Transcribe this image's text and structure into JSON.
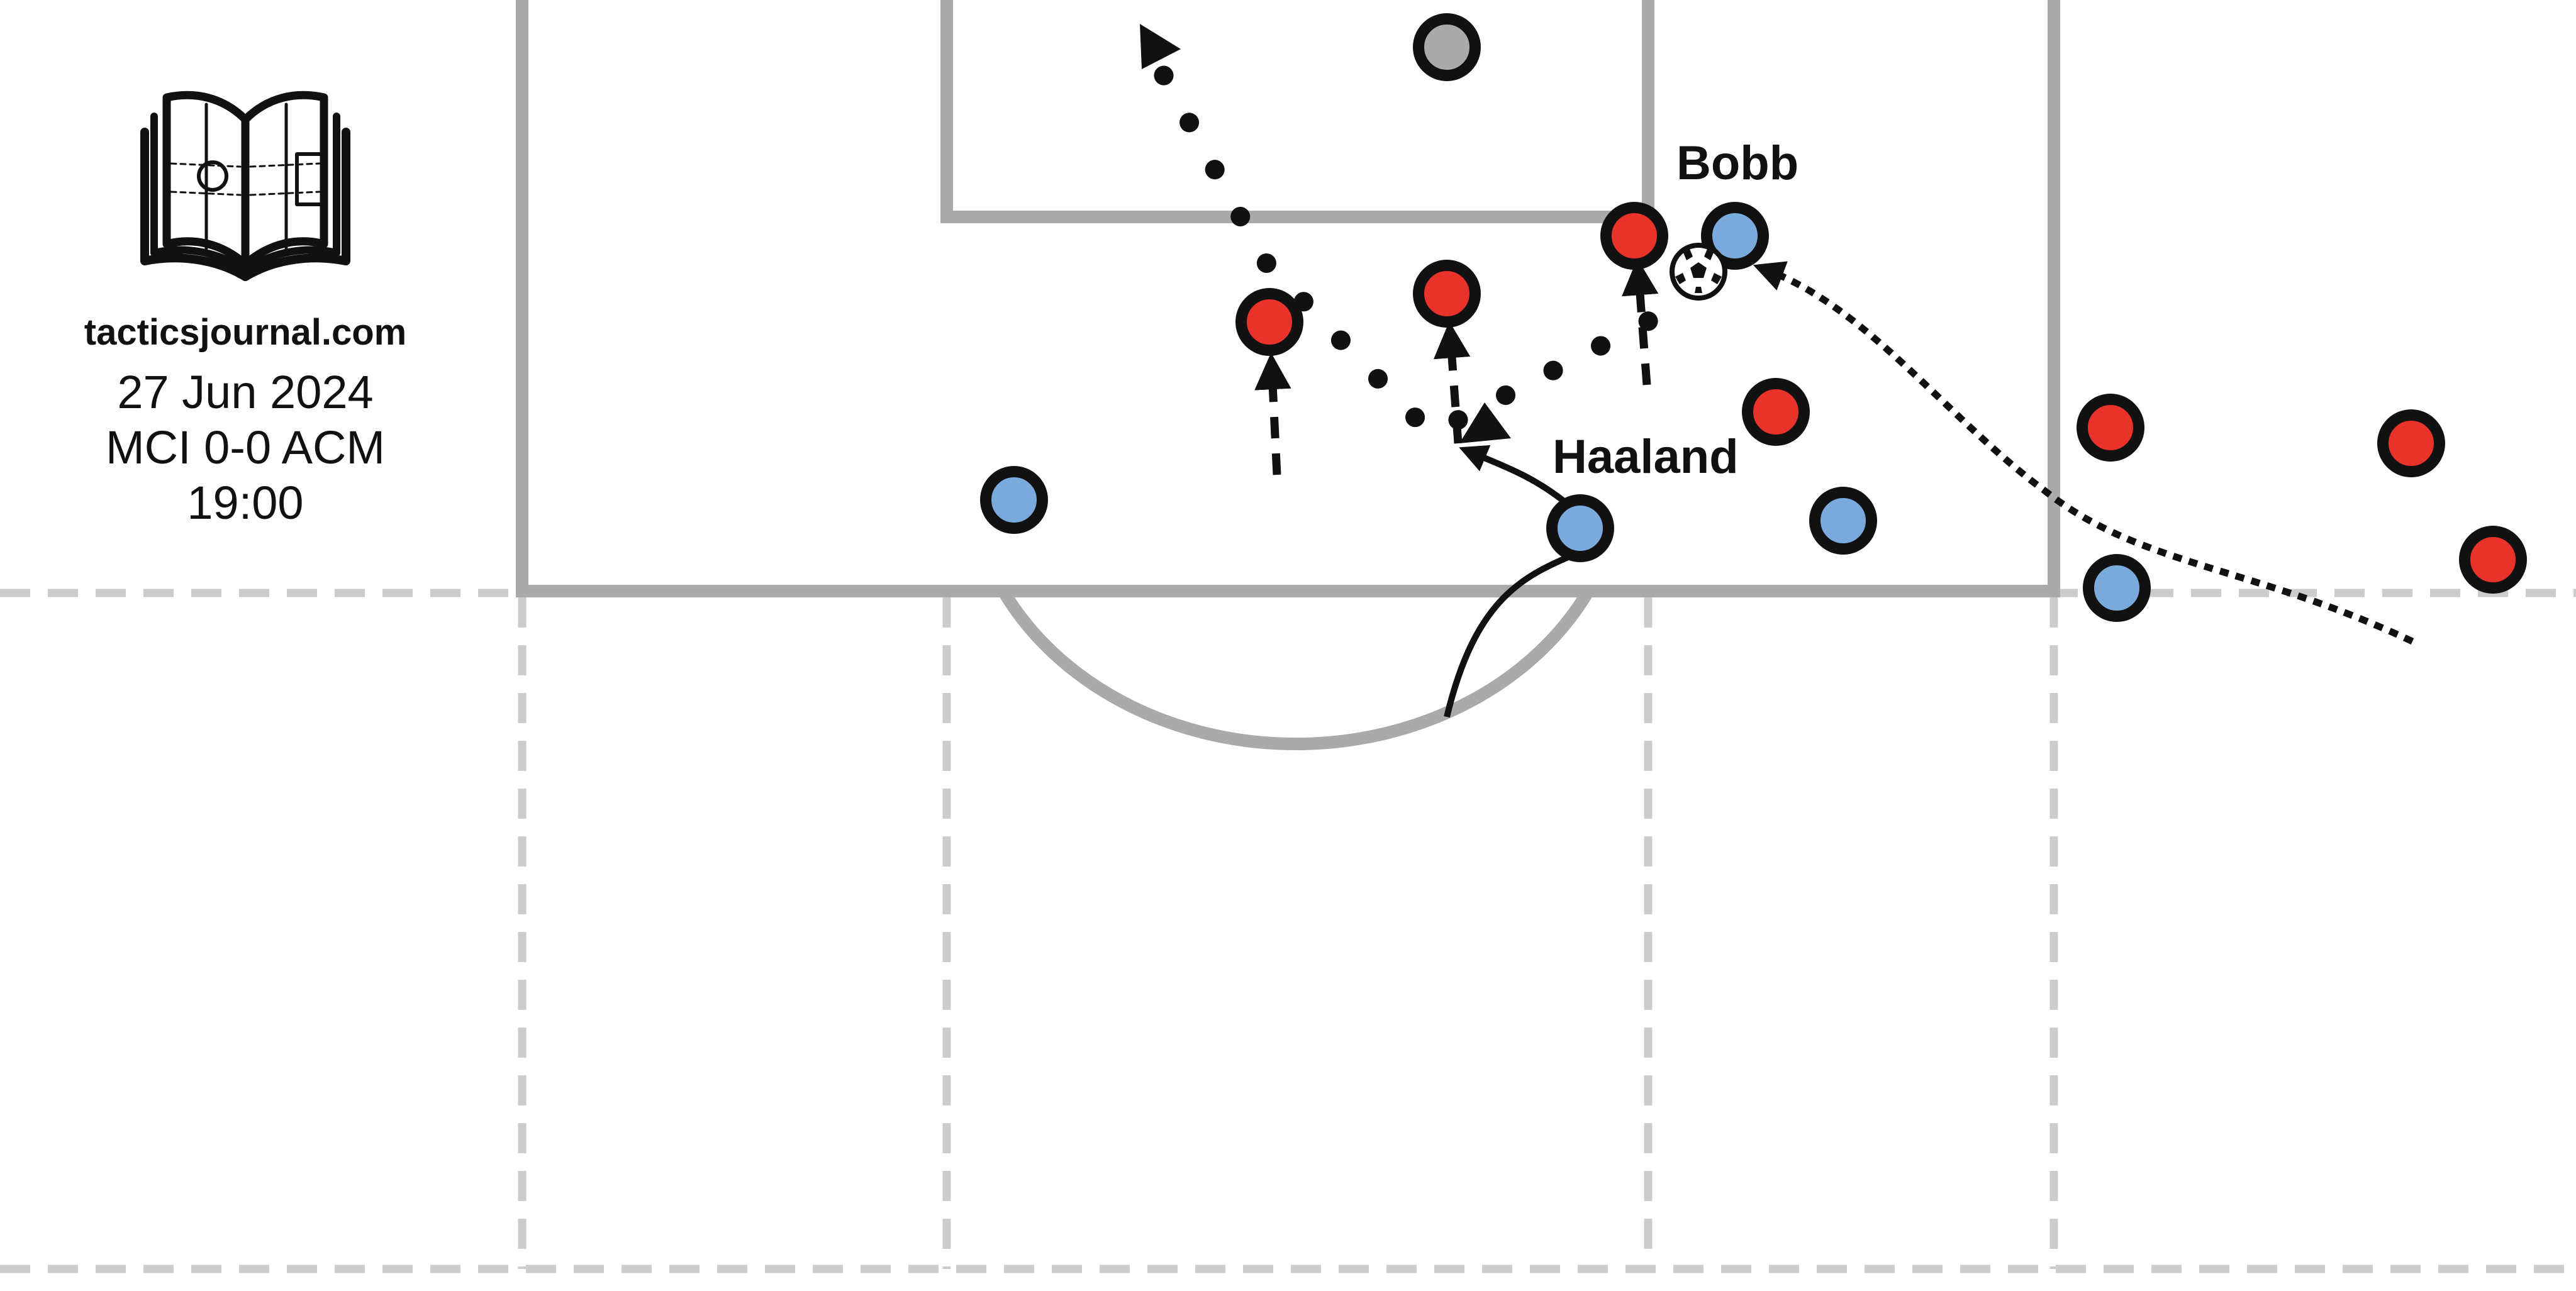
{
  "brand": {
    "site": "tacticsjournal.com",
    "logo_icon": "tactics-book-icon"
  },
  "match": {
    "date": "27 Jun 2024",
    "score": "MCI 0-0 ACM",
    "time": "19:00"
  },
  "labels": {
    "bobb": "Bobb",
    "haaland": "Haaland"
  },
  "colors": {
    "team_blue": "#7aaadc",
    "team_red": "#e8322a",
    "neutral_player": "#aaaaaa",
    "pitch_lines": "#aaaaaa",
    "zone_lines": "#cccccc",
    "ink": "#111111"
  }
}
